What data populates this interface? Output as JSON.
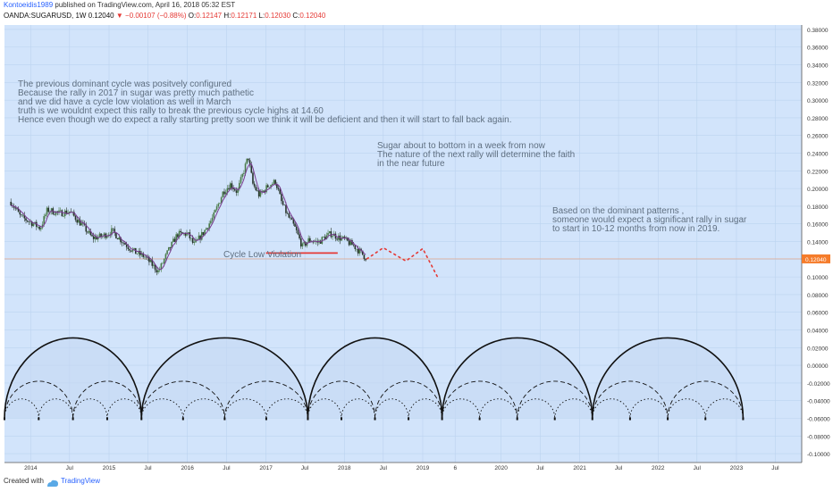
{
  "header": {
    "author": "Kontoeidis1989",
    "published": "published on TradingView.com, April 16, 2018 05:32 EST",
    "symbol": "OANDA:SUGARUSD, 1W",
    "last": "0.12040",
    "change": "−0.00107 (−0.88%)",
    "o_label": "O:",
    "o_val": "0.12147",
    "h_label": "H:",
    "h_val": "0.12171",
    "l_label": "L:",
    "l_val": "0.12030",
    "c_label": "C:",
    "c_val": "0.12040"
  },
  "annotations": {
    "dominant_cycle": [
      "The previous dominant cycle was positvely configured",
      "Because the rally in 2017 in sugar was pretty much pathetic",
      "and we did have a cycle low violation as well in March",
      "truth is we wouldnt expect this rally to break the previous cycle highs at 14.60",
      "Hence even though we do expect a rally starting pretty soon we think it will be deficient and then it will start to fall back again."
    ],
    "bottom": [
      "Sugar about to bottom in a week from now",
      "The nature of the next rally will determine the faith",
      "in the near future"
    ],
    "patterns": [
      "Based on the dominant patterns ,",
      "someone would expect a significant rally in sugar",
      "to start in 10-12 months from now in 2019."
    ],
    "cycle_low": "Cycle Low Violation"
  },
  "footer": {
    "created": "Created with",
    "brand": "TradingView"
  },
  "colors": {
    "background": "#d2e4fb",
    "candle_up": "#4a7a4a",
    "candle_down": "#26332a",
    "ma": "#7a3c92",
    "projection": "#e53935",
    "violation": "#e53935",
    "cycle": "#111111",
    "last_price_tag": "#f57c2b"
  },
  "chart_data": {
    "type": "candlestick",
    "title": "OANDA:SUGARUSD, 1W",
    "ylim": [
      -0.11,
      0.385
    ],
    "yticks": [
      "0.38000",
      "0.36000",
      "0.34000",
      "0.32000",
      "0.30000",
      "0.28000",
      "0.26000",
      "0.24000",
      "0.22000",
      "0.20000",
      "0.18000",
      "0.16000",
      "0.14000",
      "0.12000",
      "0.10000",
      "0.08000",
      "0.06000",
      "0.04000",
      "0.02000",
      "0.00000",
      "-0.02000",
      "-0.04000",
      "-0.06000",
      "-0.08000",
      "-0.10000"
    ],
    "xticks": [
      "2014",
      "Jul",
      "2015",
      "Jul",
      "2016",
      "Jul",
      "2017",
      "Jul",
      "2018",
      "Jul",
      "2019",
      "6",
      "2020",
      "Jul",
      "2021",
      "Jul",
      "2022",
      "Jul",
      "2023",
      "Jul"
    ],
    "last_price": "0.12040",
    "price_path": [
      [
        "2013-10-01",
        0.185
      ],
      [
        "2013-11-15",
        0.168
      ],
      [
        "2014-01-01",
        0.162
      ],
      [
        "2014-02-15",
        0.155
      ],
      [
        "2014-03-20",
        0.176
      ],
      [
        "2014-05-15",
        0.172
      ],
      [
        "2014-07-01",
        0.174
      ],
      [
        "2014-09-01",
        0.158
      ],
      [
        "2014-10-15",
        0.144
      ],
      [
        "2014-12-01",
        0.146
      ],
      [
        "2015-01-15",
        0.152
      ],
      [
        "2015-03-01",
        0.141
      ],
      [
        "2015-04-01",
        0.134
      ],
      [
        "2015-05-01",
        0.128
      ],
      [
        "2015-06-15",
        0.123
      ],
      [
        "2015-08-20",
        0.106
      ],
      [
        "2015-10-01",
        0.128
      ],
      [
        "2015-11-15",
        0.148
      ],
      [
        "2016-01-01",
        0.149
      ],
      [
        "2016-02-01",
        0.136
      ],
      [
        "2016-03-15",
        0.15
      ],
      [
        "2016-05-01",
        0.168
      ],
      [
        "2016-06-15",
        0.196
      ],
      [
        "2016-07-20",
        0.205
      ],
      [
        "2016-08-20",
        0.196
      ],
      [
        "2016-09-25",
        0.224
      ],
      [
        "2016-10-10",
        0.236
      ],
      [
        "2016-11-01",
        0.205
      ],
      [
        "2016-12-01",
        0.192
      ],
      [
        "2017-01-15",
        0.204
      ],
      [
        "2017-02-15",
        0.208
      ],
      [
        "2017-03-15",
        0.184
      ],
      [
        "2017-04-15",
        0.168
      ],
      [
        "2017-05-15",
        0.156
      ],
      [
        "2017-06-20",
        0.134
      ],
      [
        "2017-07-20",
        0.142
      ],
      [
        "2017-09-01",
        0.139
      ],
      [
        "2017-10-01",
        0.145
      ],
      [
        "2017-11-01",
        0.149
      ],
      [
        "2017-12-01",
        0.145
      ],
      [
        "2018-01-01",
        0.142
      ],
      [
        "2018-02-15",
        0.135
      ],
      [
        "2018-03-20",
        0.127
      ],
      [
        "2018-04-16",
        0.1204
      ]
    ],
    "cycle_low_violation": {
      "x_start": "2017-01-01",
      "x_end": "2017-12-01",
      "y": 0.127
    },
    "projection": [
      [
        "2018-04-16",
        0.1204
      ],
      [
        "2018-07-01",
        0.133
      ],
      [
        "2018-10-15",
        0.118
      ],
      [
        "2019-01-01",
        0.132
      ],
      [
        "2019-03-15",
        0.098
      ]
    ],
    "cycle_lows": [
      "2013-09-01",
      "2015-06-01",
      "2017-07-15",
      "2019-04-01",
      "2021-03-01",
      "2023-02-01"
    ]
  }
}
